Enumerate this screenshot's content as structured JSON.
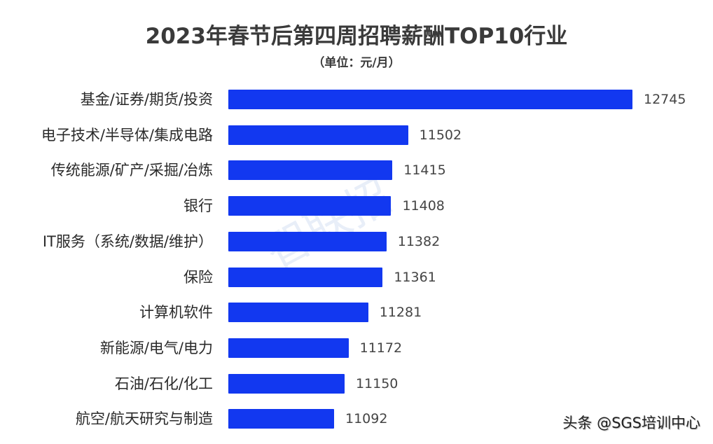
{
  "header": {
    "title": "2023年春节后第四周招聘薪酬TOP10行业",
    "subtitle": "（单位：元/月）"
  },
  "watermark": "智联招",
  "credit": "头条 @SGS培训中心",
  "colors": {
    "bar": "#1238f0",
    "text": "#2a2a2a"
  },
  "chart_data": {
    "type": "bar",
    "orientation": "horizontal",
    "title": "2023年春节后第四周招聘薪酬TOP10行业",
    "subtitle": "（单位：元/月）",
    "xlabel": "",
    "ylabel": "",
    "unit": "元/月",
    "grid": false,
    "legend": null,
    "categories": [
      "基金/证券/期货/投资",
      "电子技术/半导体/集成电路",
      "传统能源/矿产/采掘/冶炼",
      "银行",
      "IT服务（系统/数据/维护）",
      "保险",
      "计算机软件",
      "新能源/电气/电力",
      "石油/石化/化工",
      "航空/航天研究与制造"
    ],
    "values": [
      12745,
      11502,
      11415,
      11408,
      11382,
      11361,
      11281,
      11172,
      11150,
      11092
    ],
    "value_labels": [
      "12745",
      "11502",
      "11415",
      "11408",
      "11382",
      "11361",
      "11281",
      "11172",
      "11150",
      "11092"
    ]
  }
}
